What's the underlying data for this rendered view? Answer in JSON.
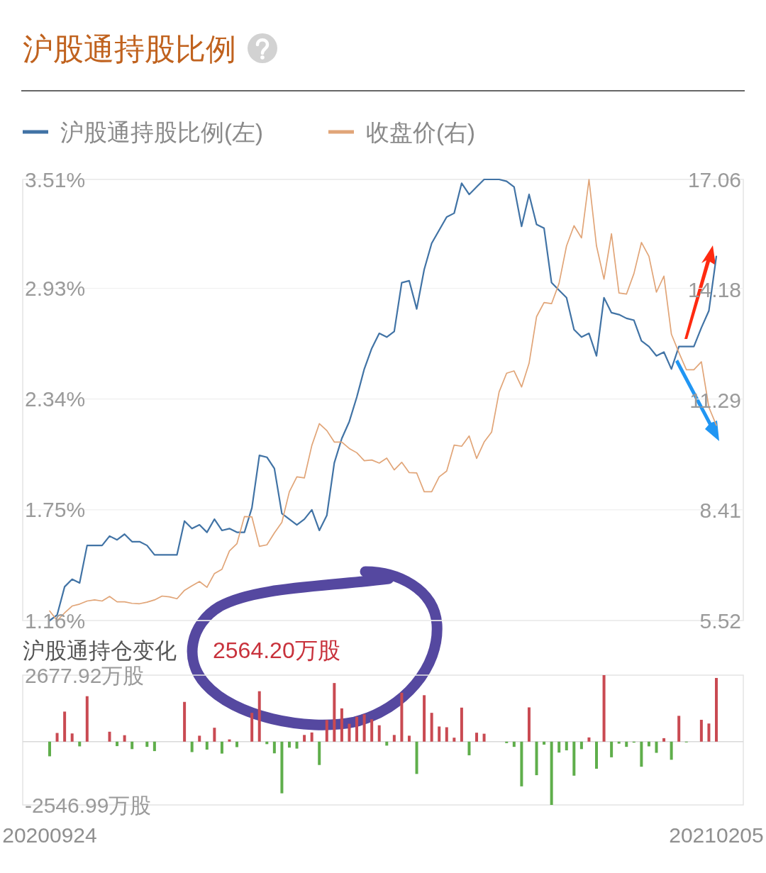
{
  "chart_data": [
    {
      "type": "line",
      "title": "沪股通持股比例",
      "legend": "top left",
      "grid": "y",
      "categories": [
        null,
        null,
        null,
        null,
        null,
        null,
        null,
        null,
        null,
        null,
        null,
        null,
        null,
        null,
        null,
        null,
        null,
        null,
        null,
        null,
        null,
        null,
        null,
        null,
        null,
        null,
        null,
        null,
        null,
        null,
        null,
        null,
        null,
        null,
        null,
        null,
        null,
        null,
        null,
        null,
        null,
        null,
        null,
        null,
        null,
        null,
        null,
        null,
        null,
        null,
        null,
        null,
        null,
        null,
        null,
        null,
        null,
        null,
        null,
        null,
        null,
        null,
        null,
        null,
        null,
        null,
        null,
        null,
        null,
        null,
        null,
        null,
        null,
        null,
        null,
        null,
        null,
        null,
        null,
        null,
        null,
        null,
        null,
        null,
        null,
        null,
        null,
        null,
        null,
        null
      ],
      "ylim": [
        1.16,
        3.51
      ],
      "yticks": [
        {
          "value": 1.16,
          "label": "1.16%"
        },
        {
          "value": 1.75,
          "label": "1.75%"
        },
        {
          "value": 2.34,
          "label": "2.34%"
        },
        {
          "value": 2.93,
          "label": "2.93%"
        },
        {
          "value": 3.51,
          "label": "3.51%"
        }
      ],
      "y2lim": [
        5.52,
        17.06
      ],
      "y2ticks": [
        5.52,
        8.41,
        11.29,
        14.18,
        17.06
      ],
      "series": [
        {
          "name": "沪股通持股比例(左)",
          "color": "#4173a5",
          "values": [
            1.16,
            1.19,
            1.34,
            1.38,
            1.36,
            1.56,
            1.56,
            1.56,
            1.61,
            1.59,
            1.62,
            1.58,
            1.58,
            1.56,
            1.51,
            1.51,
            1.51,
            1.51,
            1.69,
            1.65,
            1.67,
            1.63,
            1.7,
            1.64,
            1.65,
            1.63,
            1.63,
            1.76,
            2.04,
            2.03,
            1.97,
            1.73,
            1.7,
            1.67,
            1.7,
            1.75,
            1.64,
            1.72,
            2.0,
            2.13,
            2.22,
            2.35,
            2.5,
            2.61,
            2.69,
            2.67,
            2.7,
            2.96,
            2.97,
            2.82,
            3.03,
            3.17,
            3.24,
            3.31,
            3.33,
            3.49,
            3.43,
            3.47,
            3.51,
            3.51,
            3.51,
            3.5,
            3.47,
            3.26,
            3.43,
            3.27,
            3.25,
            2.96,
            2.92,
            2.88,
            2.71,
            2.67,
            2.69,
            2.57,
            2.88,
            2.8,
            2.79,
            2.77,
            2.76,
            2.65,
            2.62,
            2.57,
            2.59,
            2.5,
            2.62,
            2.62,
            2.62,
            2.72,
            2.81,
            3.1
          ]
        },
        {
          "name": "收盘价(右)",
          "color": "#e1a578",
          "axis": "y2",
          "values": [
            5.77,
            5.52,
            5.72,
            5.9,
            5.95,
            6.03,
            6.06,
            6.03,
            6.15,
            6.01,
            6.01,
            5.97,
            5.96,
            6.0,
            6.06,
            6.16,
            6.14,
            6.09,
            6.31,
            6.43,
            6.54,
            6.39,
            6.75,
            6.86,
            7.34,
            7.53,
            8.24,
            8.23,
            7.46,
            7.5,
            7.81,
            8.09,
            8.89,
            9.28,
            9.25,
            10.1,
            10.67,
            10.49,
            10.19,
            10.19,
            10.02,
            9.91,
            9.7,
            9.72,
            9.64,
            9.77,
            9.46,
            9.66,
            9.39,
            9.38,
            8.89,
            8.89,
            9.28,
            9.43,
            10.11,
            10.08,
            10.35,
            9.76,
            10.19,
            10.45,
            11.5,
            11.99,
            12.05,
            11.63,
            12.25,
            13.47,
            13.84,
            13.81,
            14.34,
            15.32,
            15.85,
            15.53,
            17.06,
            15.32,
            14.45,
            15.64,
            14.09,
            14.06,
            14.6,
            15.41,
            15.05,
            14.11,
            14.53,
            13.01,
            12.53,
            12.08,
            12.08,
            12.29,
            11.1,
            10.63
          ]
        }
      ]
    },
    {
      "type": "bar",
      "title": "沪股通持仓变化",
      "annotations": [
        "2564.20万股"
      ],
      "categories": [
        "20200924",
        null,
        null,
        null,
        null,
        null,
        null,
        null,
        null,
        null,
        null,
        null,
        null,
        null,
        null,
        null,
        null,
        null,
        null,
        null,
        null,
        null,
        null,
        null,
        null,
        null,
        null,
        null,
        null,
        null,
        null,
        null,
        null,
        null,
        null,
        null,
        null,
        null,
        null,
        null,
        null,
        null,
        null,
        null,
        null,
        null,
        null,
        null,
        null,
        null,
        null,
        null,
        null,
        null,
        null,
        null,
        null,
        null,
        null,
        null,
        null,
        null,
        null,
        null,
        null,
        null,
        null,
        null,
        null,
        null,
        null,
        null,
        null,
        null,
        null,
        null,
        null,
        null,
        null,
        null,
        null,
        null,
        null,
        null,
        null,
        null,
        null,
        null,
        null,
        "20210205"
      ],
      "ylim": [
        -2546.99,
        2677.92
      ],
      "yticks": [
        {
          "value": -2546.99,
          "label": "-2546.99万股"
        },
        {
          "value": 2677.92,
          "label": "2677.92万股"
        }
      ],
      "ref_lines": [
        {
          "axis": "y",
          "value": 0,
          "color": "#d9d9d9"
        }
      ],
      "values": [
        -590,
        350,
        1210,
        330,
        -190,
        1830,
        null,
        null,
        400,
        -180,
        260,
        -300,
        null,
        -210,
        -380,
        null,
        null,
        null,
        1600,
        -420,
        240,
        -320,
        560,
        -480,
        90,
        -220,
        null,
        1160,
        2030,
        -100,
        -470,
        -2080,
        -240,
        -280,
        270,
        370,
        -940,
        870,
        2360,
        1340,
        720,
        1000,
        1100,
        900,
        660,
        -160,
        270,
        1970,
        240,
        -1300,
        1870,
        1160,
        610,
        580,
        160,
        1370,
        -550,
        360,
        320,
        null,
        null,
        -60,
        -210,
        -1800,
        1380,
        -1350,
        -120,
        -2546.99,
        -440,
        -350,
        -1370,
        -300,
        170,
        -1090,
        2677.92,
        -630,
        -80,
        -210,
        -40,
        -1010,
        -190,
        -450,
        140,
        -730,
        1040,
        -30,
        null,
        880,
        730,
        2564.2
      ],
      "colors": [
        "#5fae4b",
        "#c94a52",
        "#c94a52",
        "#c94a52",
        "#5fae4b",
        "#c94a52",
        null,
        null,
        "#c94a52",
        "#5fae4b",
        "#c94a52",
        "#5fae4b",
        null,
        "#5fae4b",
        "#5fae4b",
        null,
        null,
        null,
        "#c94a52",
        "#5fae4b",
        "#c94a52",
        "#5fae4b",
        "#c94a52",
        "#5fae4b",
        "#c94a52",
        "#5fae4b",
        null,
        "#c94a52",
        "#c94a52",
        "#5fae4b",
        "#5fae4b",
        "#5fae4b",
        "#5fae4b",
        "#5fae4b",
        "#c94a52",
        "#c94a52",
        "#5fae4b",
        "#c94a52",
        "#c94a52",
        "#c94a52",
        "#c94a52",
        "#c94a52",
        "#c94a52",
        "#c94a52",
        "#c94a52",
        "#5fae4b",
        "#c94a52",
        "#c94a52",
        "#c94a52",
        "#5fae4b",
        "#c94a52",
        "#c94a52",
        "#c94a52",
        "#c94a52",
        "#c94a52",
        "#c94a52",
        "#5fae4b",
        "#c94a52",
        "#c94a52",
        null,
        null,
        "#5fae4b",
        "#5fae4b",
        "#5fae4b",
        "#c94a52",
        "#5fae4b",
        "#5fae4b",
        "#5fae4b",
        "#5fae4b",
        "#5fae4b",
        "#5fae4b",
        "#5fae4b",
        "#c94a52",
        "#5fae4b",
        "#c94a52",
        "#5fae4b",
        "#5fae4b",
        "#5fae4b",
        "#5fae4b",
        "#5fae4b",
        "#5fae4b",
        "#5fae4b",
        "#c94a52",
        "#5fae4b",
        "#c94a52",
        "#5fae4b",
        null,
        "#c94a52",
        "#c94a52",
        "#c94a52"
      ]
    }
  ]
}
